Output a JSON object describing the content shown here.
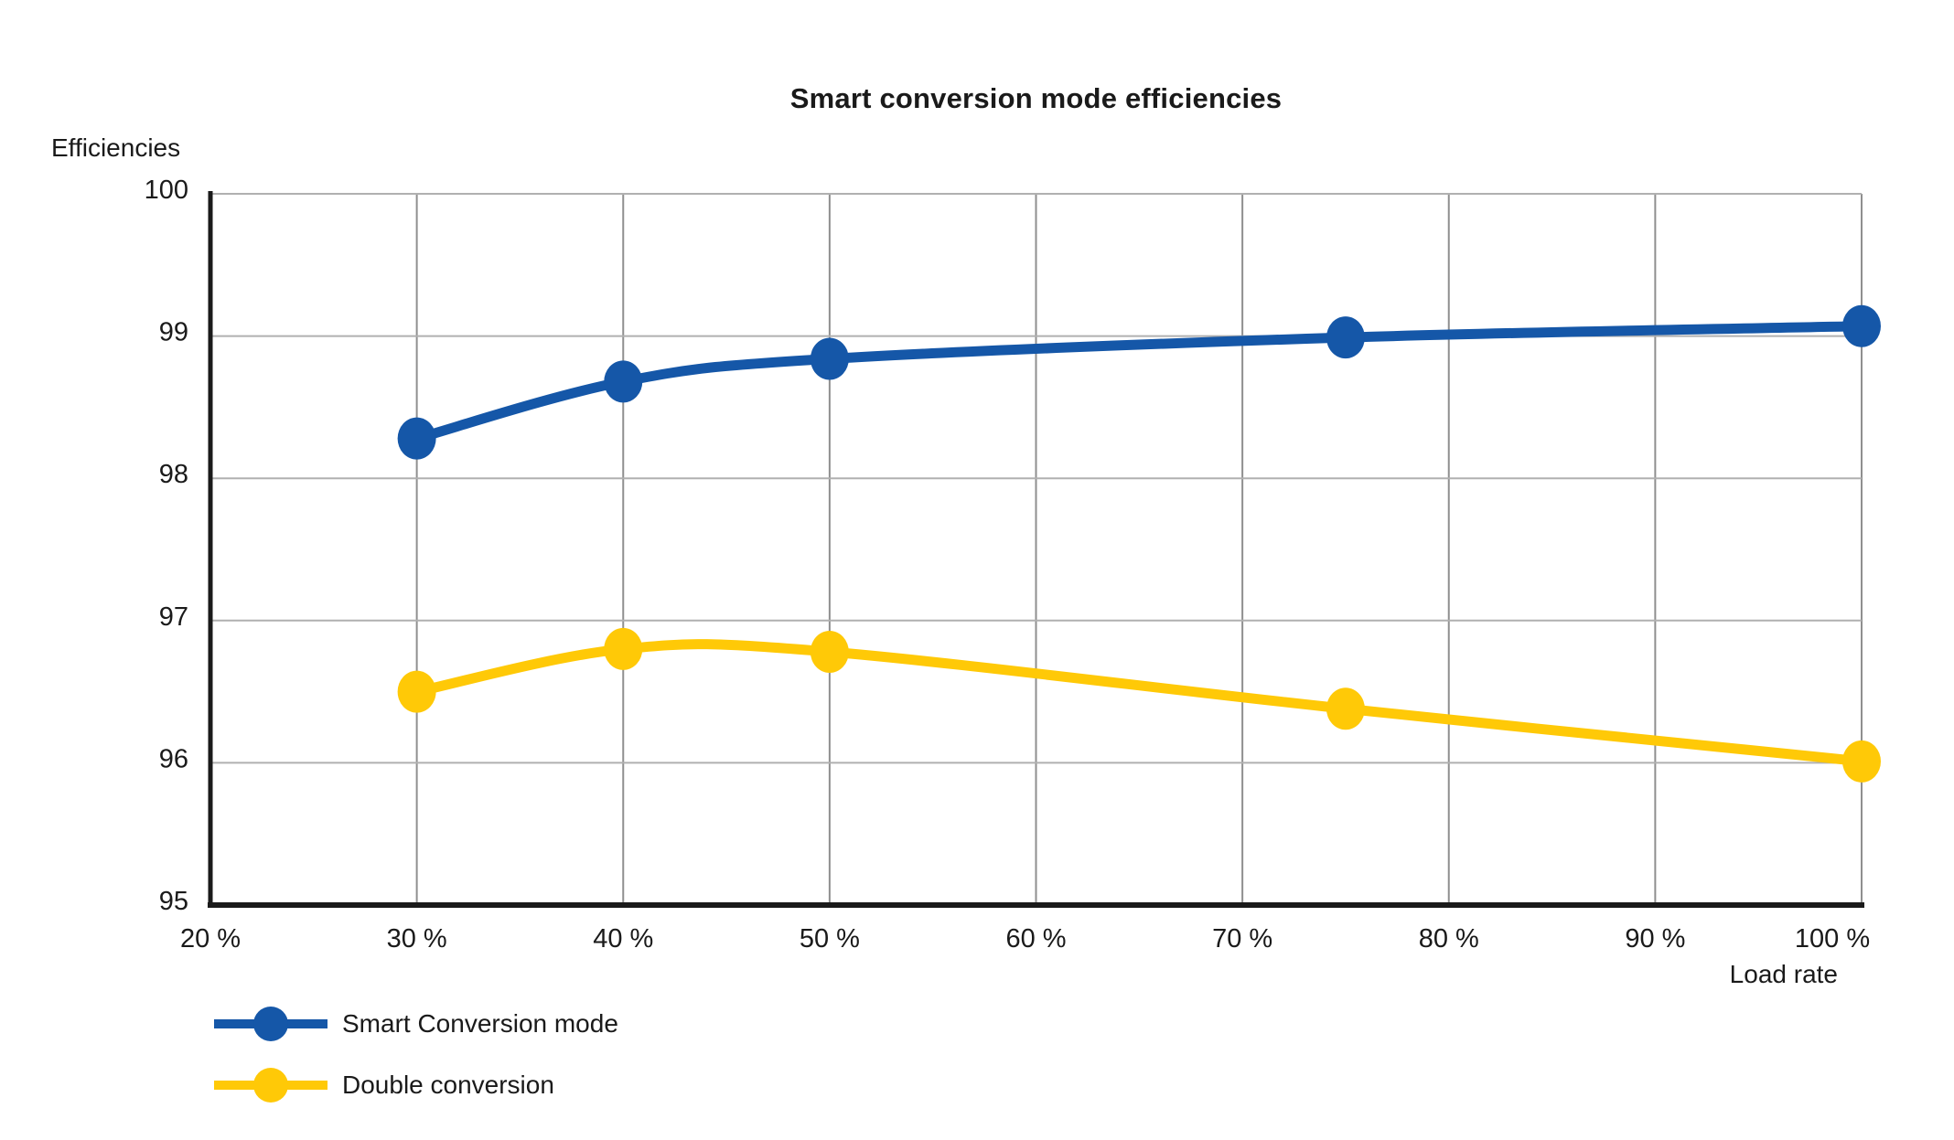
{
  "chart_data": {
    "type": "line",
    "title": "Smart conversion mode efficiencies",
    "ylabel": "Efficiencies",
    "xlabel": "Load rate",
    "xlim": [
      20,
      100
    ],
    "ylim": [
      95,
      100
    ],
    "xticks": [
      20,
      30,
      40,
      50,
      60,
      70,
      80,
      90,
      100
    ],
    "xtick_labels": [
      "20 %",
      "30 %",
      "40 %",
      "50 %",
      "60 %",
      "70 %",
      "80 %",
      "90 %",
      "100 %"
    ],
    "yticks": [
      95,
      96,
      97,
      98,
      99,
      100
    ],
    "grid": true,
    "legend_position": "bottom-left",
    "x": [
      30,
      40,
      50,
      75,
      100
    ],
    "series": [
      {
        "name": "Smart Conversion mode",
        "color": "#1557A8",
        "values": [
          98.28,
          98.68,
          98.84,
          98.99,
          99.07
        ]
      },
      {
        "name": "Double conversion",
        "color": "#FFC907",
        "values": [
          96.5,
          96.8,
          96.78,
          96.38,
          96.01
        ]
      }
    ],
    "axis_color": "#1a1a1a",
    "grid_color_vertical": "#8f8f8f",
    "grid_color_horizontal": "#b0b0b0"
  }
}
